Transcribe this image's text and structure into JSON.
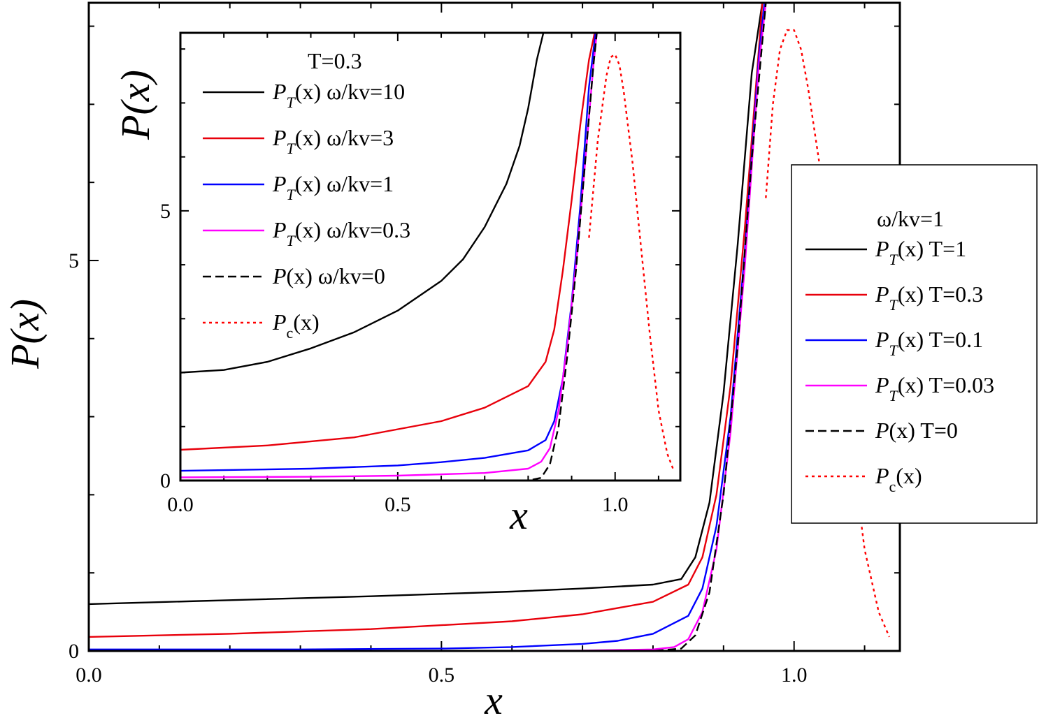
{
  "chart_data": [
    {
      "panel": "main",
      "type": "line",
      "xlabel": "x",
      "ylabel": "P(x)",
      "xlim": [
        0.0,
        1.15
      ],
      "ylim": [
        0,
        8.3
      ],
      "xticks": [
        {
          "value": 0.0,
          "label": "0.0"
        },
        {
          "value": 0.5,
          "label": "0.5"
        },
        {
          "value": 1.0,
          "label": "1.0"
        }
      ],
      "yticks": [
        {
          "value": 0,
          "label": "0"
        },
        {
          "value": 5,
          "label": "5"
        }
      ],
      "legend": {
        "position": "right",
        "header": "ω/kv=1",
        "entries": [
          {
            "label": "P_T(x) T=1",
            "main": "P",
            "sub": "T",
            "rest": "(x) T=1",
            "color": "#000000",
            "dash": "solid"
          },
          {
            "label": "P_T(x) T=0.3",
            "main": "P",
            "sub": "T",
            "rest": "(x) T=0.3",
            "color": "#e8000b",
            "dash": "solid"
          },
          {
            "label": "P_T(x) T=0.1",
            "main": "P",
            "sub": "T",
            "rest": "(x) T=0.1",
            "color": "#0000ff",
            "dash": "solid"
          },
          {
            "label": "P_T(x) T=0.03",
            "main": "P",
            "sub": "T",
            "rest": "(x) T=0.03",
            "color": "#ff00ff",
            "dash": "solid"
          },
          {
            "label": "P(x) T=0",
            "main": "P",
            "sub": "",
            "rest": "(x) T=0",
            "color": "#000000",
            "dash": "dashed"
          },
          {
            "label": "P_c(x)",
            "main": "P",
            "sub": "c",
            "rest": "(x)",
            "color": "#ff0000",
            "dash": "dotted"
          }
        ]
      },
      "series": [
        {
          "name": "P_T(x) T=1",
          "color": "#000000",
          "dash": "solid",
          "x": [
            0.0,
            0.2,
            0.4,
            0.6,
            0.7,
            0.8,
            0.84,
            0.86,
            0.88,
            0.9,
            0.92,
            0.94,
            0.955
          ],
          "y": [
            0.6,
            0.65,
            0.7,
            0.76,
            0.8,
            0.85,
            0.92,
            1.2,
            1.9,
            3.3,
            5.2,
            7.4,
            8.3
          ]
        },
        {
          "name": "P_T(x) T=0.3",
          "color": "#e8000b",
          "dash": "solid",
          "x": [
            0.0,
            0.2,
            0.4,
            0.6,
            0.7,
            0.8,
            0.85,
            0.87,
            0.89,
            0.91,
            0.93,
            0.95,
            0.955
          ],
          "y": [
            0.18,
            0.22,
            0.28,
            0.38,
            0.47,
            0.63,
            0.85,
            1.2,
            2.0,
            3.4,
            5.4,
            7.7,
            8.3
          ]
        },
        {
          "name": "P_T(x) T=0.1",
          "color": "#0000ff",
          "dash": "solid",
          "x": [
            0.0,
            0.3,
            0.5,
            0.6,
            0.7,
            0.75,
            0.8,
            0.85,
            0.87,
            0.89,
            0.91,
            0.93,
            0.95,
            0.958
          ],
          "y": [
            0.02,
            0.02,
            0.03,
            0.05,
            0.09,
            0.13,
            0.22,
            0.45,
            0.8,
            1.6,
            3.0,
            5.1,
            7.6,
            8.3
          ]
        },
        {
          "name": "P_T(x) T=0.03",
          "color": "#ff00ff",
          "dash": "solid",
          "x": [
            0.0,
            0.5,
            0.7,
            0.8,
            0.83,
            0.85,
            0.87,
            0.89,
            0.91,
            0.93,
            0.95,
            0.96
          ],
          "y": [
            0.0,
            0.0,
            0.005,
            0.02,
            0.05,
            0.15,
            0.5,
            1.3,
            2.8,
            4.9,
            7.5,
            8.3
          ]
        },
        {
          "name": "P(x) T=0",
          "color": "#000000",
          "dash": "dashed",
          "x": [
            0.0,
            0.8,
            0.84,
            0.86,
            0.88,
            0.9,
            0.92,
            0.94,
            0.96
          ],
          "y": [
            0.0,
            0.0,
            0.03,
            0.2,
            0.75,
            2.0,
            3.9,
            6.3,
            8.3
          ]
        },
        {
          "name": "P_c(x)",
          "color": "#ff0000",
          "dash": "dotted",
          "x": [
            0.96,
            0.97,
            0.98,
            0.99,
            1.0,
            1.01,
            1.02,
            1.04,
            1.06,
            1.08,
            1.1,
            1.12,
            1.135
          ],
          "y": [
            5.8,
            7.0,
            7.7,
            7.95,
            7.95,
            7.7,
            7.2,
            6.0,
            4.4,
            2.7,
            1.3,
            0.5,
            0.18
          ]
        }
      ]
    },
    {
      "panel": "inset",
      "type": "line",
      "xlabel": "x",
      "ylabel": "P(x)",
      "xlim": [
        0.0,
        1.15
      ],
      "ylim": [
        0,
        8.3
      ],
      "xticks": [
        {
          "value": 0.0,
          "label": "0.0"
        },
        {
          "value": 0.5,
          "label": "0.5"
        },
        {
          "value": 1.0,
          "label": "1.0"
        }
      ],
      "yticks": [
        {
          "value": 0,
          "label": "0"
        },
        {
          "value": 5,
          "label": "5"
        }
      ],
      "legend": {
        "position": "top-left",
        "header": "T=0.3",
        "entries": [
          {
            "label": "P_T(x) ω/kv=10",
            "main": "P",
            "sub": "T",
            "rest": "(x) ω/kv=10",
            "color": "#000000",
            "dash": "solid"
          },
          {
            "label": "P_T(x) ω/kv=3",
            "main": "P",
            "sub": "T",
            "rest": "(x) ω/kv=3",
            "color": "#e8000b",
            "dash": "solid"
          },
          {
            "label": "P_T(x) ω/kv=1",
            "main": "P",
            "sub": "T",
            "rest": "(x) ω/kv=1",
            "color": "#0000ff",
            "dash": "solid"
          },
          {
            "label": "P_T(x) ω/kv=0.3",
            "main": "P",
            "sub": "T",
            "rest": "(x) ω/kv=0.3",
            "color": "#ff00ff",
            "dash": "solid"
          },
          {
            "label": "P(x) ω/kv=0",
            "main": "P",
            "sub": "",
            "rest": "(x) ω/kv=0",
            "color": "#000000",
            "dash": "dashed"
          },
          {
            "label": "P_c(x)",
            "main": "P",
            "sub": "c",
            "rest": "(x)",
            "color": "#ff0000",
            "dash": "dotted"
          }
        ]
      },
      "series": [
        {
          "name": "P_T(x) ω/kv=10",
          "color": "#000000",
          "dash": "solid",
          "x": [
            0.0,
            0.1,
            0.2,
            0.3,
            0.4,
            0.5,
            0.6,
            0.65,
            0.7,
            0.75,
            0.78,
            0.8,
            0.82,
            0.835
          ],
          "y": [
            2.0,
            2.05,
            2.2,
            2.45,
            2.75,
            3.15,
            3.7,
            4.1,
            4.7,
            5.5,
            6.2,
            6.9,
            7.8,
            8.3
          ]
        },
        {
          "name": "P_T(x) ω/kv=3",
          "color": "#e8000b",
          "dash": "solid",
          "x": [
            0.0,
            0.2,
            0.4,
            0.6,
            0.7,
            0.8,
            0.84,
            0.86,
            0.88,
            0.9,
            0.92,
            0.94,
            0.953
          ],
          "y": [
            0.57,
            0.65,
            0.8,
            1.1,
            1.35,
            1.75,
            2.2,
            2.8,
            3.9,
            5.2,
            6.6,
            7.8,
            8.3
          ]
        },
        {
          "name": "P_T(x) ω/kv=1",
          "color": "#0000ff",
          "dash": "solid",
          "x": [
            0.0,
            0.3,
            0.5,
            0.6,
            0.7,
            0.8,
            0.84,
            0.86,
            0.88,
            0.9,
            0.92,
            0.94,
            0.955
          ],
          "y": [
            0.18,
            0.22,
            0.28,
            0.34,
            0.42,
            0.56,
            0.75,
            1.1,
            1.9,
            3.3,
            5.1,
            7.3,
            8.3
          ]
        },
        {
          "name": "P_T(x) ω/kv=0.3",
          "color": "#ff00ff",
          "dash": "solid",
          "x": [
            0.0,
            0.3,
            0.5,
            0.7,
            0.8,
            0.83,
            0.85,
            0.87,
            0.89,
            0.91,
            0.93,
            0.95,
            0.958
          ],
          "y": [
            0.06,
            0.07,
            0.09,
            0.14,
            0.22,
            0.35,
            0.6,
            1.3,
            2.5,
            4.0,
            5.8,
            7.7,
            8.3
          ]
        },
        {
          "name": "P(x) ω/kv=0",
          "color": "#000000",
          "dash": "dashed",
          "x": [
            0.0,
            0.8,
            0.83,
            0.85,
            0.87,
            0.89,
            0.91,
            0.93,
            0.95,
            0.958
          ],
          "y": [
            0.0,
            0.0,
            0.05,
            0.3,
            1.0,
            2.3,
            3.9,
            5.8,
            7.7,
            8.3
          ]
        },
        {
          "name": "P_c(x)",
          "color": "#ff0000",
          "dash": "dotted",
          "x": [
            0.94,
            0.96,
            0.98,
            0.99,
            1.0,
            1.01,
            1.02,
            1.04,
            1.06,
            1.08,
            1.1,
            1.12,
            1.135
          ],
          "y": [
            4.5,
            6.3,
            7.5,
            7.85,
            7.9,
            7.7,
            7.2,
            5.9,
            4.3,
            2.7,
            1.3,
            0.5,
            0.18
          ]
        }
      ]
    }
  ]
}
